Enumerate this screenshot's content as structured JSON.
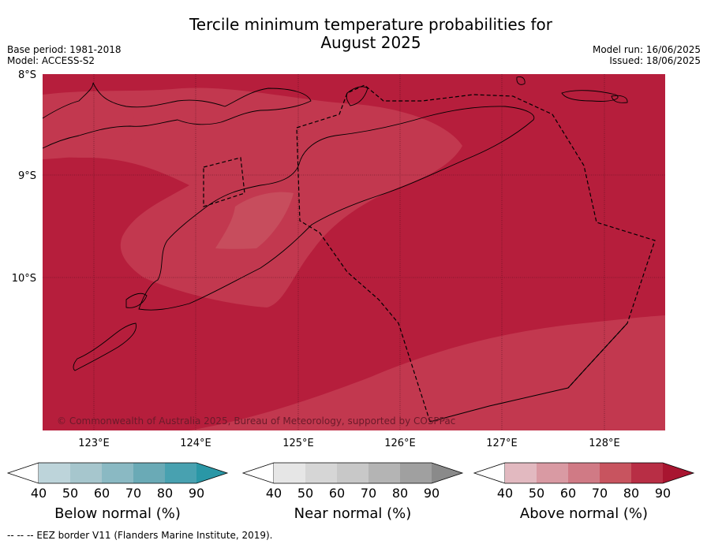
{
  "title_line1": "Tercile minimum temperature probabilities for",
  "title_line2": "August 2025",
  "meta_left": [
    "Base period: 1981-2018",
    "Model: ACCESS-S2"
  ],
  "meta_right": [
    "Model run: 16/06/2025",
    "Issued: 18/06/2025"
  ],
  "map": {
    "lat_labels": [
      "8°S",
      "9°S",
      "10°S"
    ],
    "lon_labels": [
      "123°E",
      "124°E",
      "125°E",
      "126°E",
      "127°E",
      "128°E"
    ],
    "copyright": "© Commonwealth of Australia 2025, Bureau of Meteorology, supported by COSPPac",
    "colors": {
      "above_80": "#b61e3c",
      "above_70": "#c2384f",
      "above_60": "#c74d5d",
      "coast": "#000000"
    }
  },
  "colorbars": [
    {
      "name": "below",
      "title": "Below normal (%)",
      "ticks": [
        "40",
        "50",
        "60",
        "70",
        "80",
        "90"
      ],
      "colors": [
        "#bdd4da",
        "#a6c6cd",
        "#8ab9c3",
        "#6aaab6",
        "#48a1b0",
        "#2a97a6"
      ]
    },
    {
      "name": "near",
      "title": "Near normal (%)",
      "ticks": [
        "40",
        "50",
        "60",
        "70",
        "80",
        "90"
      ],
      "colors": [
        "#e6e6e6",
        "#d6d6d6",
        "#c8c8c8",
        "#b4b4b4",
        "#a0a0a0",
        "#8a8a8a"
      ]
    },
    {
      "name": "above",
      "title": "Above normal (%)",
      "ticks": [
        "40",
        "50",
        "60",
        "70",
        "80",
        "90"
      ],
      "colors": [
        "#e2b9c0",
        "#d99aa3",
        "#d07a85",
        "#c8545f",
        "#b82e45",
        "#a81530"
      ]
    }
  ],
  "footnote": "--  --  -- EEZ border V11 (Flanders Marine Institute, 2019)."
}
